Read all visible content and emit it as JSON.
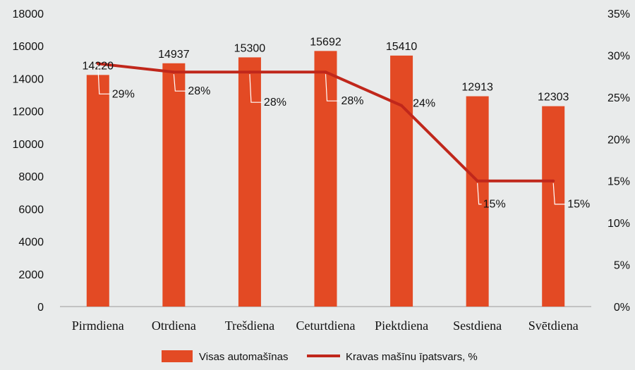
{
  "chart_data": {
    "type": "bar",
    "categories": [
      "Pirmdiena",
      "Otrdiena",
      "Trešdiena",
      "Ceturtdiena",
      "Piektdiena",
      "Sestdiena",
      "Svētdiena"
    ],
    "series": [
      {
        "name": "Visas automašīnas",
        "type": "bar",
        "axis": "left",
        "values": [
          14220,
          14937,
          15300,
          15692,
          15410,
          12913,
          12303
        ],
        "data_labels": [
          "14220",
          "14937",
          "15300",
          "15692",
          "15410",
          "12913",
          "12303"
        ],
        "color": "#e34a24"
      },
      {
        "name": "Kravas mašīnu īpatsvars, %",
        "type": "line",
        "axis": "right",
        "values": [
          29,
          28,
          28,
          28,
          24,
          15,
          15
        ],
        "data_labels": [
          "29%",
          "28%",
          "28%",
          "28%",
          "24%",
          "15%",
          "15%"
        ],
        "color": "#c0271b"
      }
    ],
    "y_left": {
      "lim": [
        0,
        18000
      ],
      "ticks": [
        0,
        2000,
        4000,
        6000,
        8000,
        10000,
        12000,
        14000,
        16000,
        18000
      ],
      "tick_labels": [
        "0",
        "2000",
        "4000",
        "6000",
        "8000",
        "10000",
        "12000",
        "14000",
        "16000",
        "18000"
      ]
    },
    "y_right": {
      "lim": [
        0,
        35
      ],
      "ticks": [
        0,
        5,
        10,
        15,
        20,
        25,
        30,
        35
      ],
      "tick_labels": [
        "0%",
        "5%",
        "10%",
        "15%",
        "20%",
        "25%",
        "30%",
        "35%"
      ]
    },
    "grid": false,
    "legend": "bottom"
  }
}
